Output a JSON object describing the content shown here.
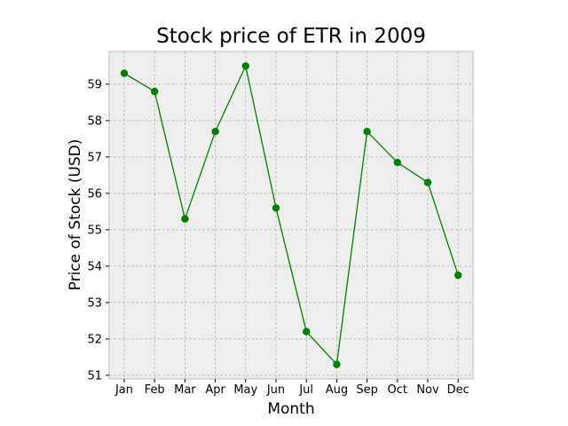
{
  "chart_data": {
    "type": "line",
    "title": "Stock price of ETR in 2009",
    "xlabel": "Month",
    "ylabel": "Price of Stock (USD)",
    "categories": [
      "Jan",
      "Feb",
      "Mar",
      "Apr",
      "May",
      "Jun",
      "Jul",
      "Aug",
      "Sep",
      "Oct",
      "Nov",
      "Dec"
    ],
    "series": [
      {
        "values": [
          59.3,
          58.8,
          55.3,
          57.7,
          59.5,
          55.6,
          52.2,
          51.3,
          57.7,
          56.85,
          56.3,
          53.75
        ]
      }
    ],
    "ylim": [
      50.9,
      59.9
    ],
    "yticks": [
      51,
      52,
      53,
      54,
      55,
      56,
      57,
      58,
      59
    ],
    "grid": true,
    "colors": {
      "line": "#008000",
      "marker": "#008000",
      "plot_background": "#eeeeee",
      "grid": "#b0b0b0"
    }
  }
}
